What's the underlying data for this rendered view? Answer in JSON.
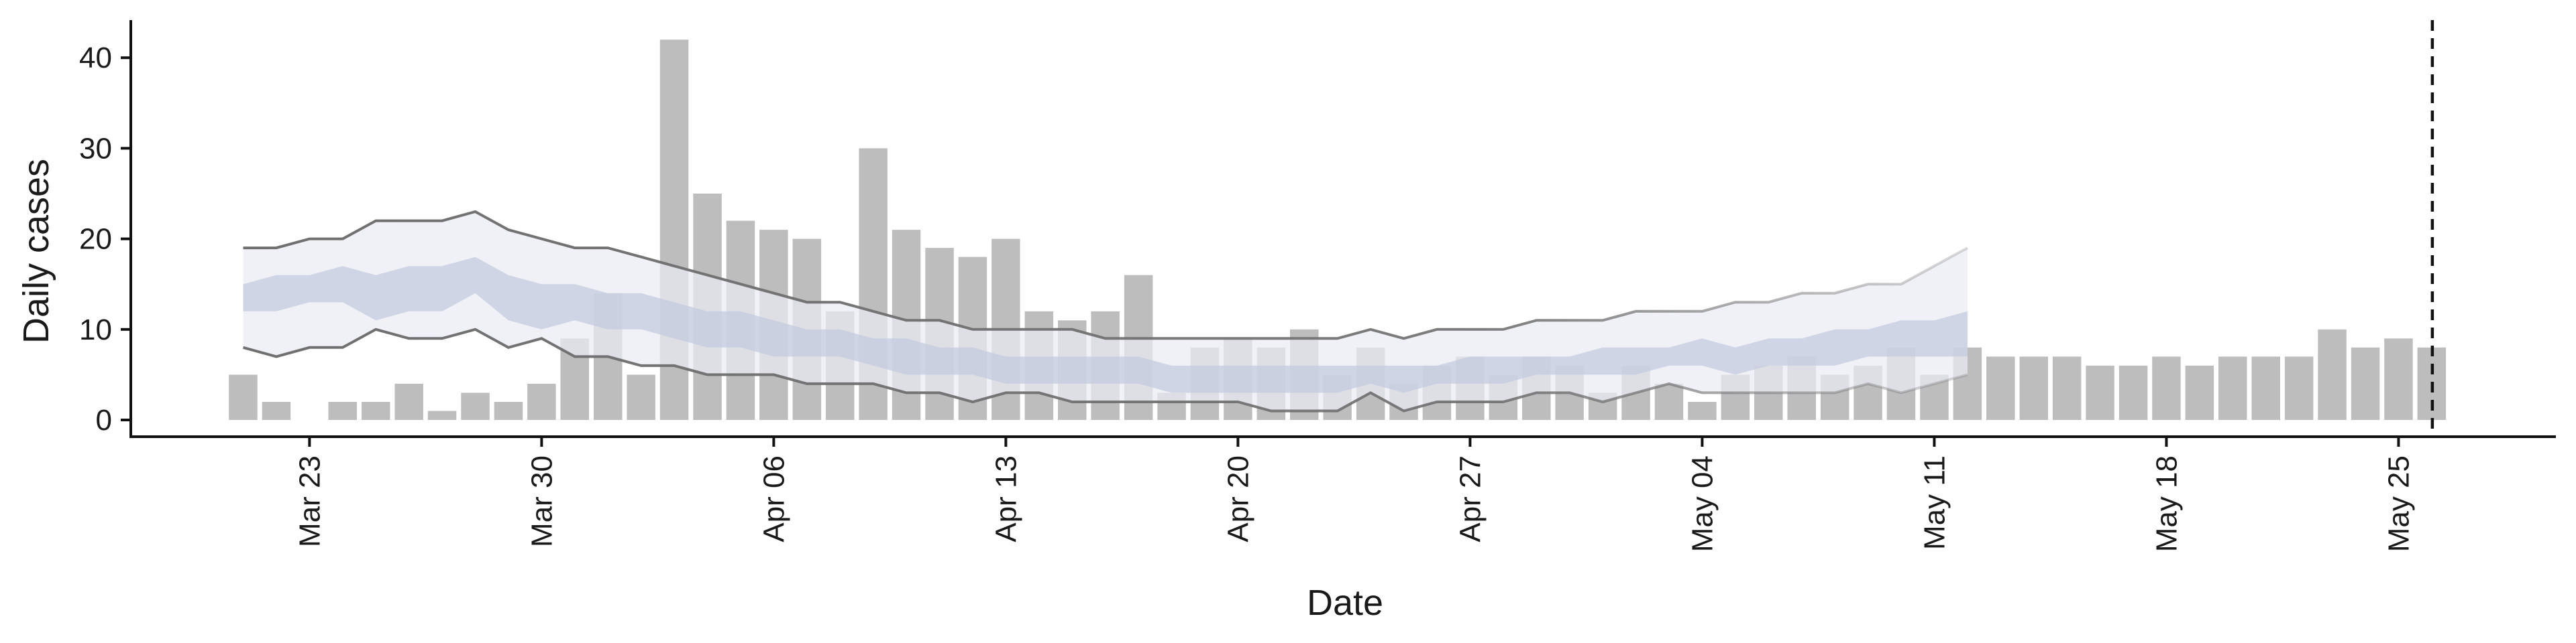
{
  "chart_data": {
    "type": "bar",
    "xlabel": "Date",
    "ylabel": "Daily cases",
    "x_start": "2020-03-21",
    "x_end": "2020-05-26",
    "ylim": [
      0,
      44
    ],
    "y_ticks": [
      0,
      10,
      20,
      30,
      40
    ],
    "x_ticks": [
      {
        "date": "2020-03-23",
        "label": "Mar 23"
      },
      {
        "date": "2020-03-30",
        "label": "Mar 30"
      },
      {
        "date": "2020-04-06",
        "label": "Apr 06"
      },
      {
        "date": "2020-04-13",
        "label": "Apr 13"
      },
      {
        "date": "2020-04-20",
        "label": "Apr 20"
      },
      {
        "date": "2020-04-27",
        "label": "Apr 27"
      },
      {
        "date": "2020-05-04",
        "label": "May 04"
      },
      {
        "date": "2020-05-11",
        "label": "May 11"
      },
      {
        "date": "2020-05-18",
        "label": "May 18"
      },
      {
        "date": "2020-05-25",
        "label": "May 25"
      }
    ],
    "daily_cases": [
      5,
      2,
      0,
      2,
      2,
      4,
      1,
      3,
      2,
      4,
      9,
      14,
      5,
      42,
      25,
      22,
      21,
      20,
      12,
      30,
      21,
      19,
      18,
      20,
      12,
      11,
      12,
      16,
      3,
      8,
      9,
      8,
      10,
      5,
      8,
      4,
      6,
      7,
      5,
      7,
      6,
      3,
      6,
      4,
      2,
      5,
      6,
      7,
      5,
      6,
      8,
      5,
      8,
      7,
      7,
      7,
      6,
      6,
      7,
      6,
      7,
      7,
      7,
      10,
      8,
      9,
      8
    ],
    "estimate_end": "2020-05-12",
    "outer_band": {
      "upper": [
        19,
        19,
        20,
        20,
        22,
        22,
        22,
        23,
        21,
        20,
        19,
        19,
        18,
        17,
        16,
        15,
        14,
        13,
        13,
        12,
        11,
        11,
        10,
        10,
        10,
        10,
        9,
        9,
        9,
        9,
        9,
        9,
        9,
        9,
        10,
        9,
        10,
        10,
        10,
        11,
        11,
        11,
        12,
        12,
        12,
        13,
        13,
        14,
        14,
        15,
        15,
        17,
        19
      ],
      "lower": [
        8,
        7,
        8,
        8,
        10,
        9,
        9,
        10,
        8,
        9,
        7,
        7,
        6,
        6,
        5,
        5,
        5,
        4,
        4,
        4,
        3,
        3,
        2,
        3,
        3,
        2,
        2,
        2,
        2,
        2,
        2,
        1,
        1,
        1,
        3,
        1,
        2,
        2,
        2,
        3,
        3,
        2,
        3,
        4,
        3,
        3,
        3,
        3,
        3,
        4,
        3,
        4,
        5
      ]
    },
    "inner_band": {
      "upper": [
        15,
        16,
        16,
        17,
        16,
        17,
        17,
        18,
        16,
        15,
        15,
        14,
        14,
        13,
        12,
        12,
        11,
        10,
        10,
        9,
        9,
        8,
        8,
        7,
        7,
        7,
        7,
        7,
        6,
        6,
        6,
        6,
        6,
        6,
        6,
        6,
        6,
        7,
        7,
        7,
        7,
        8,
        8,
        8,
        9,
        8,
        9,
        9,
        10,
        10,
        11,
        11,
        12
      ],
      "lower": [
        12,
        12,
        13,
        13,
        11,
        12,
        12,
        14,
        11,
        10,
        11,
        10,
        10,
        9,
        8,
        8,
        7,
        7,
        7,
        6,
        5,
        5,
        5,
        4,
        4,
        4,
        4,
        4,
        3,
        3,
        3,
        3,
        3,
        3,
        4,
        3,
        4,
        4,
        4,
        5,
        5,
        5,
        5,
        6,
        6,
        5,
        6,
        6,
        6,
        7,
        7,
        7,
        7
      ]
    },
    "marker_date": "2020-05-26",
    "colors": {
      "bars": "#bdbdbd",
      "outer_band": "#eaecf4",
      "inner_band": "#c3cadf",
      "bound_line": "#6f6f6f",
      "marker_line": "#111111",
      "axis": "#111111"
    }
  }
}
